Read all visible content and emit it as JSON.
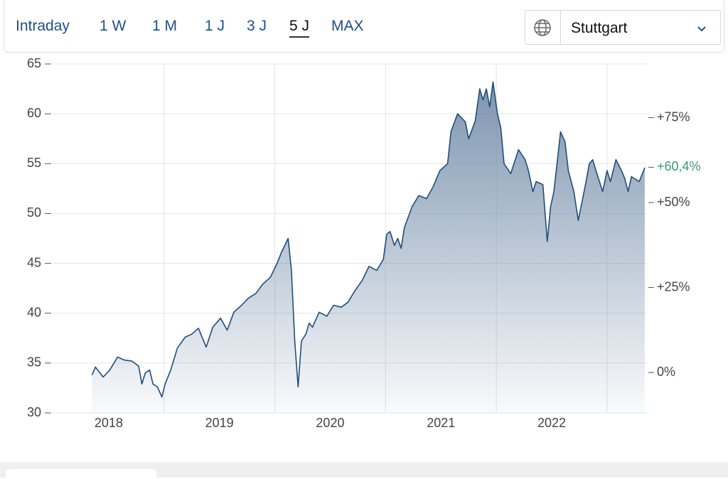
{
  "toolbar": {
    "tabs": [
      "Intraday",
      "1 W",
      "1 M",
      "1 J",
      "3 J",
      "5 J",
      "MAX"
    ],
    "active_tab": "5 J",
    "exchange": "Stuttgart"
  },
  "chart_data": {
    "type": "area",
    "x": [
      2018.35,
      2018.38,
      2018.45,
      2018.51,
      2018.58,
      2018.64,
      2018.71,
      2018.77,
      2018.8,
      2018.83,
      2018.87,
      2018.9,
      2018.94,
      2018.98,
      2019.01,
      2019.06,
      2019.12,
      2019.19,
      2019.25,
      2019.31,
      2019.38,
      2019.44,
      2019.51,
      2019.57,
      2019.63,
      2019.7,
      2019.76,
      2019.83,
      2019.89,
      2019.96,
      2020.02,
      2020.06,
      2020.12,
      2020.15,
      2020.18,
      2020.21,
      2020.24,
      2020.28,
      2020.31,
      2020.34,
      2020.4,
      2020.47,
      2020.53,
      2020.6,
      2020.66,
      2020.72,
      2020.79,
      2020.82,
      2020.85,
      2020.92,
      2020.98,
      2021.01,
      2021.04,
      2021.08,
      2021.11,
      2021.14,
      2021.17,
      2021.24,
      2021.3,
      2021.37,
      2021.43,
      2021.49,
      2021.56,
      2021.59,
      2021.65,
      2021.72,
      2021.75,
      2021.81,
      2021.85,
      2021.88,
      2021.91,
      2021.94,
      2021.97,
      2022.01,
      2022.04,
      2022.07,
      2022.13,
      2022.2,
      2022.26,
      2022.29,
      2022.33,
      2022.36,
      2022.42,
      2022.46,
      2022.49,
      2022.52,
      2022.58,
      2022.62,
      2022.65,
      2022.7,
      2022.74,
      2022.78,
      2022.81,
      2022.84,
      2022.87,
      2022.9,
      2022.96,
      2023.0,
      2023.03,
      2023.08,
      2023.13,
      2023.16,
      2023.19,
      2023.22,
      2023.29,
      2023.34
    ],
    "series": [
      {
        "color": "#1f4e79",
        "fill": "#6f89a6",
        "values": [
          33.8,
          34.6,
          33.6,
          34.3,
          35.6,
          35.3,
          35.2,
          34.7,
          32.9,
          34.0,
          34.3,
          32.9,
          32.6,
          31.6,
          32.9,
          34.3,
          36.5,
          37.6,
          37.9,
          38.5,
          36.6,
          38.6,
          39.5,
          38.3,
          40.1,
          40.8,
          41.5,
          42.0,
          42.9,
          43.6,
          45.0,
          46.1,
          47.5,
          44.3,
          37.2,
          32.6,
          37.2,
          37.9,
          39.0,
          38.6,
          40.1,
          39.7,
          40.8,
          40.6,
          41.1,
          42.2,
          43.3,
          44.0,
          44.7,
          44.3,
          45.4,
          47.9,
          48.2,
          46.8,
          47.5,
          46.5,
          48.6,
          50.7,
          51.8,
          51.5,
          52.7,
          54.3,
          55.0,
          58.2,
          60.0,
          59.2,
          57.5,
          59.3,
          62.5,
          61.4,
          62.5,
          60.7,
          63.2,
          60.0,
          58.6,
          55.0,
          54.0,
          56.4,
          55.4,
          54.3,
          52.2,
          53.2,
          52.9,
          47.2,
          50.7,
          52.2,
          58.2,
          57.2,
          54.3,
          52.2,
          49.3,
          51.5,
          53.2,
          55.0,
          55.4,
          54.3,
          52.2,
          54.3,
          53.2,
          55.4,
          54.3,
          53.5,
          52.2,
          53.7,
          53.2,
          54.6
        ]
      }
    ],
    "xlim": [
      2018.0,
      2023.36
    ],
    "xticks": [
      {
        "value": 2018.5,
        "label": "2018"
      },
      {
        "value": 2019.5,
        "label": "2019"
      },
      {
        "value": 2020.5,
        "label": "2020"
      },
      {
        "value": 2021.5,
        "label": "2021"
      },
      {
        "value": 2022.5,
        "label": "2022"
      }
    ],
    "xgrid": [
      2019,
      2020,
      2021,
      2022,
      2023
    ],
    "ylim": [
      30,
      65
    ],
    "yticks": [
      30,
      35,
      40,
      45,
      50,
      55,
      60,
      65
    ],
    "y2lim": [
      -11.9,
      90.8
    ],
    "y2ticks": [
      {
        "value": 0,
        "label": "0%"
      },
      {
        "value": 25,
        "label": "+25%"
      },
      {
        "value": 50,
        "label": "+50%"
      },
      {
        "value": 75,
        "label": "+75%"
      }
    ],
    "annotation": {
      "value": 60.4,
      "label": "+60,4%",
      "color": "#3a9a6e"
    },
    "grid": true
  }
}
